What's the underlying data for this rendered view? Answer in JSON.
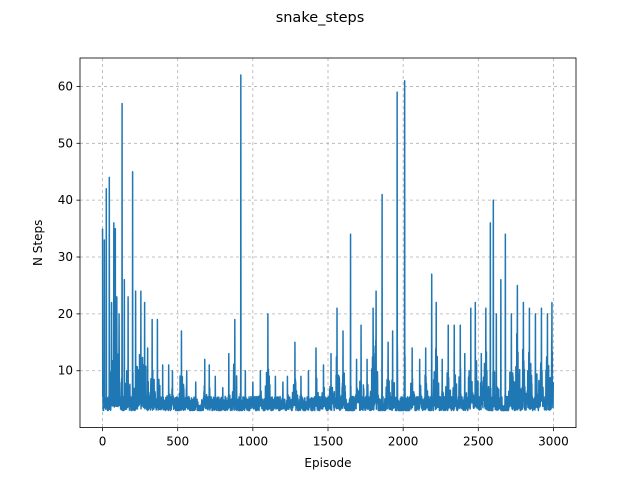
{
  "chart_data": {
    "type": "line",
    "title": "snake_steps",
    "xlabel": "Episode",
    "ylabel": "N Steps",
    "xlim": [
      -150,
      3150
    ],
    "ylim": [
      0,
      65
    ],
    "xticks": [
      0,
      500,
      1000,
      1500,
      2000,
      2500,
      3000
    ],
    "yticks": [
      10,
      20,
      30,
      40,
      50,
      60
    ],
    "grid": true,
    "series": [
      {
        "color": "#1f77b4",
        "n_points": 3000,
        "baseline_min": 3,
        "peaks": [
          [
            0,
            35
          ],
          [
            12,
            33
          ],
          [
            25,
            42
          ],
          [
            45,
            44
          ],
          [
            60,
            22
          ],
          [
            75,
            36
          ],
          [
            85,
            35
          ],
          [
            95,
            23
          ],
          [
            110,
            20
          ],
          [
            130,
            57
          ],
          [
            145,
            26
          ],
          [
            170,
            23
          ],
          [
            200,
            45
          ],
          [
            220,
            24
          ],
          [
            255,
            24
          ],
          [
            280,
            22
          ],
          [
            300,
            14
          ],
          [
            330,
            19
          ],
          [
            365,
            19
          ],
          [
            400,
            11
          ],
          [
            440,
            11
          ],
          [
            465,
            10
          ],
          [
            525,
            17
          ],
          [
            560,
            10
          ],
          [
            620,
            8
          ],
          [
            680,
            12
          ],
          [
            710,
            11
          ],
          [
            750,
            9
          ],
          [
            800,
            7
          ],
          [
            840,
            13
          ],
          [
            880,
            19
          ],
          [
            920,
            62
          ],
          [
            950,
            10
          ],
          [
            1000,
            8
          ],
          [
            1050,
            10
          ],
          [
            1100,
            20
          ],
          [
            1150,
            9
          ],
          [
            1200,
            8
          ],
          [
            1230,
            9
          ],
          [
            1280,
            15
          ],
          [
            1320,
            9
          ],
          [
            1370,
            10
          ],
          [
            1420,
            14
          ],
          [
            1470,
            11
          ],
          [
            1520,
            13
          ],
          [
            1560,
            21
          ],
          [
            1600,
            17
          ],
          [
            1650,
            34
          ],
          [
            1690,
            12
          ],
          [
            1720,
            18
          ],
          [
            1760,
            12
          ],
          [
            1800,
            21
          ],
          [
            1820,
            24
          ],
          [
            1860,
            41
          ],
          [
            1900,
            15
          ],
          [
            1930,
            17
          ],
          [
            1960,
            59
          ],
          [
            2010,
            61
          ],
          [
            2060,
            14
          ],
          [
            2110,
            12
          ],
          [
            2150,
            14
          ],
          [
            2190,
            27
          ],
          [
            2220,
            22
          ],
          [
            2260,
            12
          ],
          [
            2300,
            18
          ],
          [
            2340,
            18
          ],
          [
            2380,
            18
          ],
          [
            2410,
            13
          ],
          [
            2450,
            21
          ],
          [
            2480,
            22
          ],
          [
            2520,
            13
          ],
          [
            2550,
            21
          ],
          [
            2580,
            36
          ],
          [
            2600,
            40
          ],
          [
            2620,
            20
          ],
          [
            2650,
            26
          ],
          [
            2680,
            34
          ],
          [
            2720,
            20
          ],
          [
            2760,
            25
          ],
          [
            2800,
            22
          ],
          [
            2840,
            21
          ],
          [
            2880,
            20
          ],
          [
            2920,
            21
          ],
          [
            2960,
            20
          ],
          [
            2990,
            22
          ],
          [
            2999,
            8
          ]
        ]
      }
    ]
  }
}
